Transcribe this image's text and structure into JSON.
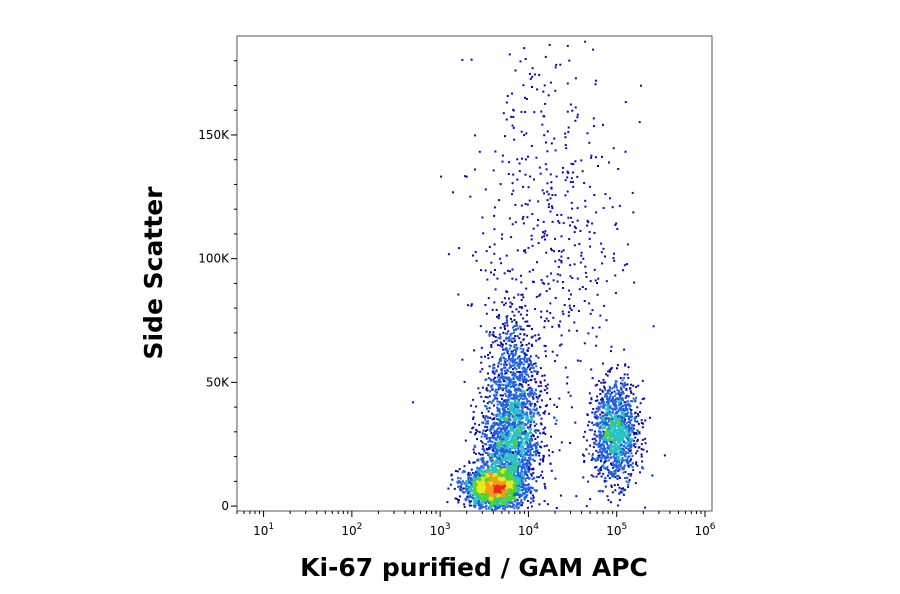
{
  "chart_data": {
    "type": "scatter",
    "subtype": "flow-cytometry-density-dot-plot",
    "title": "",
    "xlabel": "Ki-67 purified / GAM APC",
    "ylabel": "Side Scatter",
    "x_scale": "log",
    "xlim": [
      5,
      1200000
    ],
    "ylim": [
      -2000,
      190000
    ],
    "x_ticks": [
      {
        "value": 10,
        "base": "10",
        "exp": "1"
      },
      {
        "value": 100,
        "base": "10",
        "exp": "2"
      },
      {
        "value": 1000,
        "base": "10",
        "exp": "3"
      },
      {
        "value": 10000,
        "base": "10",
        "exp": "4"
      },
      {
        "value": 100000,
        "base": "10",
        "exp": "5"
      },
      {
        "value": 1000000,
        "base": "10",
        "exp": "6"
      }
    ],
    "y_ticks": [
      {
        "value": 0,
        "label": "0"
      },
      {
        "value": 50000,
        "label": "50K"
      },
      {
        "value": 100000,
        "label": "100K"
      },
      {
        "value": 150000,
        "label": "150K"
      }
    ],
    "grid": false,
    "legend": "none",
    "populations": [
      {
        "x_center": 4000,
        "y_center": 8000,
        "x_spread_decades": 0.16,
        "y_spread": 4000,
        "density": "very high"
      },
      {
        "x_center": 6000,
        "y_center": 25000,
        "x_spread_decades": 0.17,
        "y_spread": 10000,
        "density": "high"
      },
      {
        "x_center": 6500,
        "y_center": 50000,
        "x_spread_decades": 0.15,
        "y_spread": 15000,
        "density": "medium"
      },
      {
        "x_center": 95000,
        "y_center": 30000,
        "x_spread_decades": 0.13,
        "y_spread": 10000,
        "density": "high"
      },
      {
        "x_center": 15000,
        "y_center": 110000,
        "x_spread_decades": 0.45,
        "y_spread": 45000,
        "density": "sparse"
      }
    ],
    "density_colors": [
      "#0a0aa8",
      "#1f5fe0",
      "#29c2c2",
      "#4fd23a",
      "#e8e81e",
      "#f59a18",
      "#e82818"
    ]
  }
}
